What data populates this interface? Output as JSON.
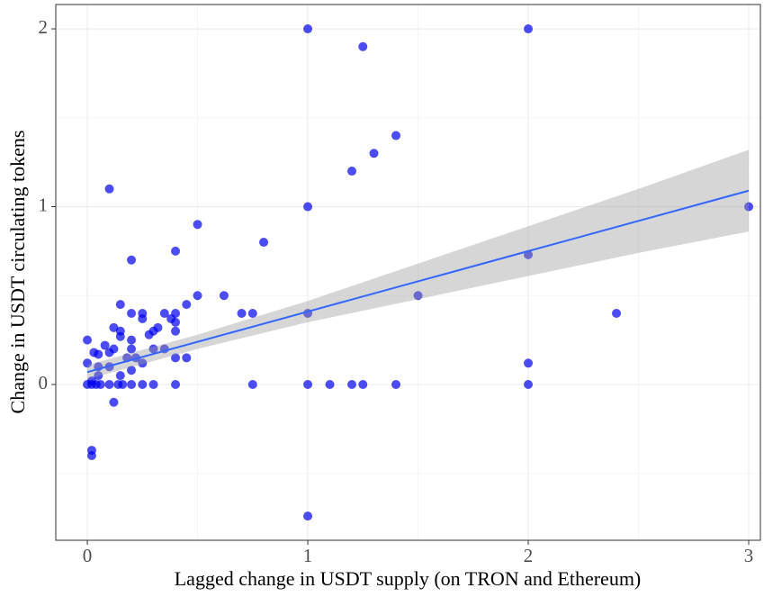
{
  "chart_data": {
    "type": "scatter",
    "x_label": "Lagged change in USDT supply (on TRON and Ethereum)",
    "y_label": "Change in USDT circulating tokens",
    "xlim": [
      -0.143,
      3.053
    ],
    "ylim": [
      -0.876,
      2.137
    ],
    "xticks": [
      0,
      1,
      2,
      3
    ],
    "yticks": [
      0,
      1,
      2
    ],
    "xminor": [
      0.5,
      1.5,
      2.5
    ],
    "yminor": [
      -0.5,
      0.5,
      1.5
    ],
    "grid": true,
    "color": "#0000ee",
    "x": [
      1,
      1.25,
      2,
      1.4,
      1.3,
      1.2,
      0.1,
      1,
      3,
      0.5,
      0.8,
      0.4,
      2,
      0.2,
      0.5,
      0.62,
      1.5,
      0.45,
      0.15,
      0.2,
      0.25,
      0.35,
      0.4,
      0.7,
      0.75,
      1,
      2.4,
      0.38,
      0.25,
      0.4,
      0.32,
      0.3,
      0.4,
      0.15,
      0.12,
      0.15,
      0.28,
      0.2,
      0,
      0.35,
      0.3,
      0.2,
      0.12,
      0.08,
      0.03,
      0.1,
      0.05,
      0.4,
      0.45,
      0.22,
      0.18,
      0,
      0.25,
      2,
      0.1,
      0.05,
      0.2,
      0.15,
      0.05,
      0.02,
      0.12,
      0.02,
      0.02,
      1,
      0,
      0.02,
      0.04,
      0.06,
      0.1,
      0.14,
      0.16,
      0.2,
      0.25,
      0.3,
      0.4,
      0.75,
      1,
      1.1,
      1.2,
      1.25,
      1.4,
      2
    ],
    "y": [
      2,
      1.9,
      2,
      1.4,
      1.3,
      1.2,
      1.1,
      1,
      1,
      0.9,
      0.8,
      0.75,
      0.73,
      0.7,
      0.5,
      0.5,
      0.5,
      0.45,
      0.45,
      0.4,
      0.4,
      0.4,
      0.4,
      0.4,
      0.4,
      0.4,
      0.4,
      0.37,
      0.37,
      0.35,
      0.32,
      0.3,
      0.3,
      0.3,
      0.32,
      0.27,
      0.28,
      0.25,
      0.25,
      0.2,
      0.2,
      0.2,
      0.2,
      0.22,
      0.18,
      0.18,
      0.17,
      0.15,
      0.15,
      0.15,
      0.15,
      0.12,
      0.12,
      0.12,
      0.1,
      0.1,
      0.08,
      0.05,
      0.05,
      0.02,
      -0.1,
      -0.37,
      -0.4,
      -0.74,
      0,
      0,
      0,
      0,
      0,
      0,
      0,
      0,
      0,
      0,
      0,
      0,
      0,
      0,
      0,
      0,
      0,
      0
    ],
    "fit": {
      "color": "#3366ff",
      "x": [
        0,
        0.5,
        1,
        1.5,
        2,
        2.5,
        3
      ],
      "y": [
        0.07,
        0.24,
        0.41,
        0.58,
        0.75,
        0.92,
        1.09
      ],
      "lower": [
        0.03,
        0.2,
        0.35,
        0.48,
        0.61,
        0.74,
        0.86
      ],
      "upper": [
        0.11,
        0.28,
        0.47,
        0.68,
        0.89,
        1.1,
        1.32
      ]
    }
  }
}
